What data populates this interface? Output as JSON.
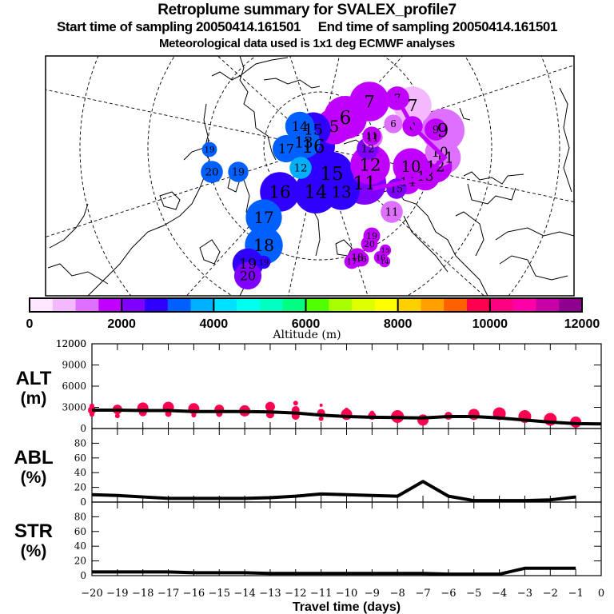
{
  "header": {
    "title": "Retroplume summary for SVALEX_profile7",
    "subtitle": "Start time of sampling 20050414.161501     End time of sampling 20050414.161501",
    "met_note": "Meteorological data used is 1x1 deg ECMWF analyses"
  },
  "map": {
    "projection": "polar stereographic (north pole)",
    "clusters": [
      {
        "label": "7",
        "day": -7,
        "alt_m": 1500,
        "color": "#c000ff",
        "rel_size": 0.9
      },
      {
        "label": "7",
        "day": -7,
        "alt_m": 1500,
        "color": "#c000ff",
        "rel_size": 0.45
      },
      {
        "label": "7",
        "day": -7,
        "alt_m": 800,
        "color": "#f4b8ff",
        "rel_size": 0.85
      },
      {
        "label": "6",
        "day": -6,
        "alt_m": 1300,
        "color": "#df6fff",
        "rel_size": 0.3
      },
      {
        "label": "8",
        "day": -8,
        "alt_m": 1500,
        "color": "#c000ff",
        "rel_size": 0.35
      },
      {
        "label": "9",
        "day": -9,
        "alt_m": 1000,
        "color": "#df6fff",
        "rel_size": 1.0
      },
      {
        "label": "9",
        "day": -9,
        "alt_m": 1500,
        "color": "#c000ff",
        "rel_size": 0.4
      },
      {
        "label": "10",
        "day": -10,
        "alt_m": 1000,
        "color": "#df6fff",
        "rel_size": 0.6
      },
      {
        "label": "11",
        "day": -11,
        "alt_m": 1000,
        "color": "#df6fff",
        "rel_size": 0.7
      },
      {
        "label": "12",
        "day": -12,
        "alt_m": 1500,
        "color": "#c000ff",
        "rel_size": 0.7
      },
      {
        "label": "13",
        "day": -13,
        "alt_m": 1500,
        "color": "#c000ff",
        "rel_size": 0.6
      },
      {
        "label": "10",
        "day": -10,
        "alt_m": 1500,
        "color": "#c000ff",
        "rel_size": 0.8
      },
      {
        "label": "14",
        "day": -14,
        "alt_m": 1500,
        "color": "#c000ff",
        "rel_size": 0.5
      },
      {
        "label": "15",
        "day": -15,
        "alt_m": 2500,
        "color": "#8000ff",
        "rel_size": 0.35
      },
      {
        "label": "11",
        "day": -11,
        "alt_m": 1000,
        "color": "#df6fff",
        "rel_size": 0.35
      },
      {
        "label": "12",
        "day": -12,
        "alt_m": 1500,
        "color": "#c000ff",
        "rel_size": 0.9
      },
      {
        "label": "11",
        "day": -11,
        "alt_m": 2500,
        "color": "#8000ff",
        "rel_size": 1.0
      },
      {
        "label": "12",
        "day": -12,
        "alt_m": 2500,
        "color": "#8000ff",
        "rel_size": 0.4
      },
      {
        "label": "11",
        "day": -11,
        "alt_m": 1500,
        "color": "#c000ff",
        "rel_size": 0.3
      },
      {
        "label": "6",
        "day": -6,
        "alt_m": 1500,
        "color": "#c000ff",
        "rel_size": 1.0
      },
      {
        "label": "5",
        "day": -5,
        "alt_m": 1500,
        "color": "#c000ff",
        "rel_size": 0.8
      },
      {
        "label": "15",
        "day": -15,
        "alt_m": 3000,
        "color": "#3000ff",
        "rel_size": 0.75
      },
      {
        "label": "16",
        "day": -16,
        "alt_m": 3000,
        "color": "#3000ff",
        "rel_size": 1.0
      },
      {
        "label": "14",
        "day": -14,
        "alt_m": 3500,
        "color": "#0060ff",
        "rel_size": 0.6
      },
      {
        "label": "13",
        "day": -13,
        "alt_m": 3500,
        "color": "#0060ff",
        "rel_size": 0.7
      },
      {
        "label": "17",
        "day": -17,
        "alt_m": 3500,
        "color": "#0060ff",
        "rel_size": 0.55
      },
      {
        "label": "12",
        "day": -12,
        "alt_m": 4500,
        "color": "#00b0ff",
        "rel_size": 0.4
      },
      {
        "label": "19",
        "day": -19,
        "alt_m": 3500,
        "color": "#0060ff",
        "rel_size": 0.2
      },
      {
        "label": "20",
        "day": -20,
        "alt_m": 3500,
        "color": "#0060ff",
        "rel_size": 0.4
      },
      {
        "label": "19",
        "day": -19,
        "alt_m": 3500,
        "color": "#0060ff",
        "rel_size": 0.35
      },
      {
        "label": "15",
        "day": -15,
        "alt_m": 3000,
        "color": "#3000ff",
        "rel_size": 1.0
      },
      {
        "label": "14",
        "day": -14,
        "alt_m": 3000,
        "color": "#3000ff",
        "rel_size": 1.0
      },
      {
        "label": "16",
        "day": -16,
        "alt_m": 3000,
        "color": "#3000ff",
        "rel_size": 0.9
      },
      {
        "label": "13",
        "day": -13,
        "alt_m": 3000,
        "color": "#3000ff",
        "rel_size": 0.8
      },
      {
        "label": "17",
        "day": -17,
        "alt_m": 3500,
        "color": "#0060ff",
        "rel_size": 0.8
      },
      {
        "label": "18",
        "day": -18,
        "alt_m": 3500,
        "color": "#0060ff",
        "rel_size": 0.85
      },
      {
        "label": "19",
        "day": -19,
        "alt_m": 3000,
        "color": "#3000ff",
        "rel_size": 0.65
      },
      {
        "label": "20",
        "day": -20,
        "alt_m": 2500,
        "color": "#8000ff",
        "rel_size": 0.55
      },
      {
        "label": "19",
        "day": -19,
        "alt_m": 3000,
        "color": "#3000ff",
        "rel_size": 0.15
      },
      {
        "label": "11",
        "day": -11,
        "alt_m": 1000,
        "color": "#df6fff",
        "rel_size": 0.4
      },
      {
        "label": "19",
        "day": -19,
        "alt_m": 1500,
        "color": "#c000ff",
        "rel_size": 0.25
      },
      {
        "label": "20",
        "day": -20,
        "alt_m": 1500,
        "color": "#c000ff",
        "rel_size": 0.25
      },
      {
        "label": "18",
        "day": -18,
        "alt_m": 1500,
        "color": "#c000ff",
        "rel_size": 0.3
      },
      {
        "label": "17",
        "day": -17,
        "alt_m": 1500,
        "color": "#c000ff",
        "rel_size": 0.2
      },
      {
        "label": "16",
        "day": -16,
        "alt_m": 1500,
        "color": "#c000ff",
        "rel_size": 0.2
      },
      {
        "label": "16",
        "day": -16,
        "alt_m": 1500,
        "color": "#c000ff",
        "rel_size": 0.15
      },
      {
        "label": "15",
        "day": -15,
        "alt_m": 1500,
        "color": "#c000ff",
        "rel_size": 0.1
      },
      {
        "label": "14",
        "day": -14,
        "alt_m": 1500,
        "color": "#c000ff",
        "rel_size": 0.1
      }
    ]
  },
  "colorbar": {
    "label": "Altitude (m)",
    "ticks": [
      "0",
      "2000",
      "4000",
      "6000",
      "8000",
      "10000",
      "12000"
    ],
    "bin_colors": [
      "#ffe6ff",
      "#f4b8ff",
      "#df6fff",
      "#c000ff",
      "#8000ff",
      "#3000ff",
      "#0060ff",
      "#00b0ff",
      "#00e0ff",
      "#00ffee",
      "#00ffc0",
      "#00ff80",
      "#50ff00",
      "#a8ff00",
      "#ddff00",
      "#ffff00",
      "#ffd000",
      "#ffa000",
      "#ff6000",
      "#ff0050",
      "#ff0080",
      "#ff00a8",
      "#c800a8",
      "#900090"
    ],
    "range": [
      0,
      12000
    ]
  },
  "chart_data": [
    {
      "type": "line",
      "panel": "ALT",
      "ylabel_line1": "ALT",
      "ylabel_line2": "(m)",
      "ylim": [
        0,
        12000
      ],
      "yticks": [
        "0",
        "3000",
        "6000",
        "9000",
        "12000"
      ],
      "x": [
        -20,
        -19,
        -18,
        -17,
        -16,
        -15,
        -14,
        -13,
        -12,
        -11,
        -10,
        -9,
        -8,
        -7,
        -6,
        -5,
        -4,
        -3,
        -2,
        -1,
        0
      ],
      "values": [
        2600,
        2600,
        2550,
        2550,
        2400,
        2400,
        2400,
        2350,
        2200,
        1900,
        1700,
        1600,
        1550,
        1500,
        1700,
        1700,
        1500,
        1200,
        900,
        700,
        650
      ],
      "cluster_marker_color": "#ff0050",
      "cluster_markers": [
        {
          "x": -20,
          "y": 2600,
          "s": 5
        },
        {
          "x": -20,
          "y": 3200,
          "s": 3
        },
        {
          "x": -20,
          "y": 2000,
          "s": 3
        },
        {
          "x": -19,
          "y": 2700,
          "s": 6
        },
        {
          "x": -19,
          "y": 1800,
          "s": 3
        },
        {
          "x": -18,
          "y": 2900,
          "s": 7
        },
        {
          "x": -18,
          "y": 2300,
          "s": 5
        },
        {
          "x": -17,
          "y": 3000,
          "s": 7
        },
        {
          "x": -17,
          "y": 2100,
          "s": 4
        },
        {
          "x": -16,
          "y": 2800,
          "s": 7
        },
        {
          "x": -16,
          "y": 1900,
          "s": 3
        },
        {
          "x": -15,
          "y": 2700,
          "s": 6
        },
        {
          "x": -15,
          "y": 2100,
          "s": 4
        },
        {
          "x": -14,
          "y": 2500,
          "s": 7
        },
        {
          "x": -13,
          "y": 3100,
          "s": 6
        },
        {
          "x": -13,
          "y": 2000,
          "s": 5
        },
        {
          "x": -12,
          "y": 3600,
          "s": 3
        },
        {
          "x": -12,
          "y": 2600,
          "s": 5
        },
        {
          "x": -12,
          "y": 1800,
          "s": 5
        },
        {
          "x": -11,
          "y": 2200,
          "s": 5
        },
        {
          "x": -11,
          "y": 3300,
          "s": 2
        },
        {
          "x": -11,
          "y": 1400,
          "s": 3
        },
        {
          "x": -10,
          "y": 2000,
          "s": 7
        },
        {
          "x": -10,
          "y": 2600,
          "s": 3
        },
        {
          "x": -9,
          "y": 1800,
          "s": 5
        },
        {
          "x": -9,
          "y": 2200,
          "s": 3
        },
        {
          "x": -8,
          "y": 1700,
          "s": 8
        },
        {
          "x": -7,
          "y": 1200,
          "s": 7
        },
        {
          "x": -6,
          "y": 1800,
          "s": 5
        },
        {
          "x": -5,
          "y": 2000,
          "s": 7
        },
        {
          "x": -4,
          "y": 2100,
          "s": 8
        },
        {
          "x": -3,
          "y": 1700,
          "s": 8
        },
        {
          "x": -2,
          "y": 1300,
          "s": 8
        },
        {
          "x": -1,
          "y": 900,
          "s": 7
        }
      ]
    },
    {
      "type": "line",
      "panel": "ABL",
      "ylabel_line1": "ABL",
      "ylabel_line2": "(%)",
      "ylim": [
        0,
        100
      ],
      "yticks": [
        "0",
        "20",
        "40",
        "60",
        "80"
      ],
      "x": [
        -20,
        -19,
        -18,
        -17,
        -16,
        -15,
        -14,
        -13,
        -12,
        -11,
        -10,
        -9,
        -8,
        -7,
        -6,
        -5,
        -4,
        -3,
        -2,
        -1
      ],
      "values": [
        10,
        9,
        7,
        5,
        5,
        5,
        5,
        6,
        8,
        11,
        10,
        9,
        8,
        28,
        8,
        2,
        2,
        2,
        3,
        7
      ]
    },
    {
      "type": "line",
      "panel": "STR",
      "ylabel_line1": "STR",
      "ylabel_line2": "(%)",
      "ylim": [
        0,
        100
      ],
      "yticks": [
        "0",
        "20",
        "40",
        "60",
        "80"
      ],
      "x": [
        -20,
        -19,
        -18,
        -17,
        -16,
        -15,
        -14,
        -13,
        -12,
        -11,
        -10,
        -9,
        -8,
        -7,
        -6,
        -5,
        -4,
        -3,
        -2,
        -1
      ],
      "values": [
        5,
        5,
        5,
        5,
        4,
        4,
        4,
        3,
        3,
        3,
        3,
        3,
        3,
        3,
        2,
        2,
        2,
        10,
        10,
        10
      ],
      "xlabel": "Travel time (days)",
      "xticks": [
        "-20",
        "-19",
        "-18",
        "-17",
        "-16",
        "-15",
        "-14",
        "-13",
        "-12",
        "-11",
        "-10",
        "-9",
        "-8",
        "-7",
        "-6",
        "-5",
        "-4",
        "-3",
        "-2",
        "-1",
        "0"
      ],
      "xlim": [
        -20,
        0
      ]
    }
  ]
}
